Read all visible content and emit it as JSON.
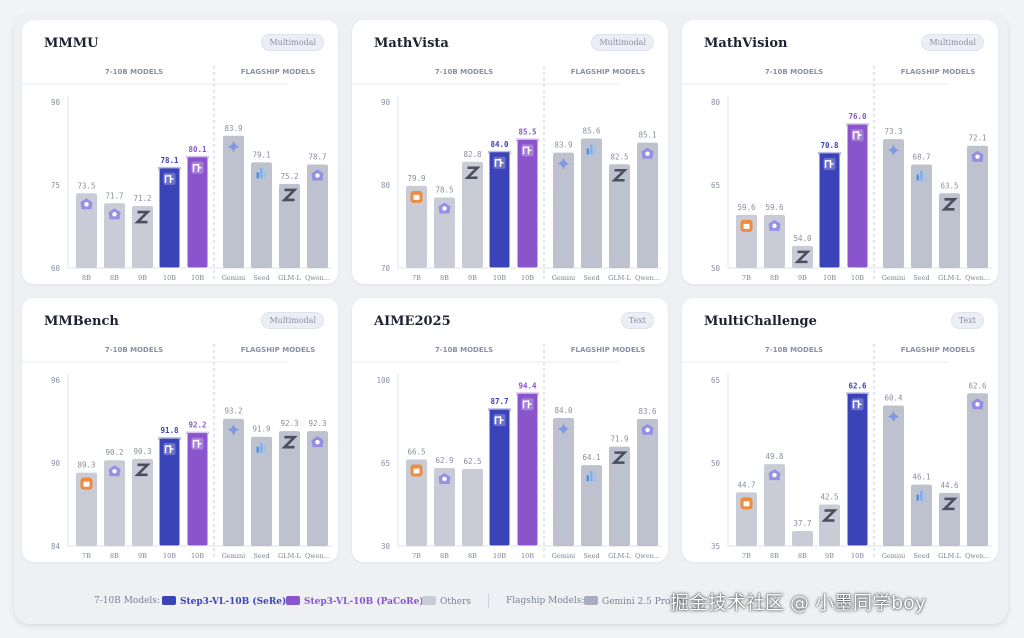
{
  "colors": {
    "serc": "#3b43b8",
    "pacore": "#8a55cc",
    "others": "#c9ccd6",
    "flag": "#a8acbd"
  },
  "chart_data": [
    {
      "type": "bar",
      "title": "MMMU",
      "badge": "Multimodal",
      "group_labels": [
        "7-10B MODELS",
        "FLAGSHIP MODELS"
      ],
      "ylim": [
        60,
        90
      ],
      "yticks": [
        "90",
        "75",
        "60"
      ],
      "categories": [
        "8B",
        "8B",
        "9B",
        "10B",
        "10B",
        "Gemini",
        "Seed",
        "GLM-L",
        "Qwen..."
      ],
      "values": [
        73.5,
        71.7,
        71.2,
        78.1,
        80.1,
        83.9,
        79.1,
        75.2,
        78.7
      ],
      "labels": [
        "73.5",
        "71.7",
        "71.2",
        "78.1",
        "80.1",
        "83.9",
        "79.1",
        "75.2",
        "78.7"
      ],
      "kinds": [
        "other",
        "other",
        "other",
        "serc",
        "pacore",
        "flag",
        "flag",
        "flag",
        "flag"
      ],
      "logos": [
        "qwen",
        "qwen",
        "zhipu",
        "step",
        "step",
        "gemini",
        "seed",
        "zhipu",
        "qwen"
      ]
    },
    {
      "type": "bar",
      "title": "MathVista",
      "badge": "Multimodal",
      "group_labels": [
        "7-10B MODELS",
        "FLAGSHIP MODELS"
      ],
      "ylim": [
        70,
        90
      ],
      "yticks": [
        "90",
        "80",
        "70"
      ],
      "categories": [
        "7B",
        "8B",
        "9B",
        "10B",
        "10B",
        "Gemini",
        "Seed",
        "GLM-L",
        "Qwen..."
      ],
      "values": [
        79.9,
        78.5,
        82.8,
        84.0,
        85.5,
        83.9,
        85.6,
        82.5,
        85.1
      ],
      "labels": [
        "79.9",
        "78.5",
        "82.8",
        "84.0",
        "85.5",
        "83.9",
        "85.6",
        "82.5",
        "85.1"
      ],
      "kinds": [
        "other",
        "other",
        "other",
        "serc",
        "pacore",
        "flag",
        "flag",
        "flag",
        "flag"
      ],
      "logos": [
        "mi",
        "qwen",
        "zhipu",
        "step",
        "step",
        "gemini",
        "seed",
        "zhipu",
        "qwen"
      ]
    },
    {
      "type": "bar",
      "title": "MathVision",
      "badge": "Multimodal",
      "group_labels": [
        "7-10B MODELS",
        "FLAGSHIP MODELS"
      ],
      "ylim": [
        50,
        80
      ],
      "yticks": [
        "80",
        "65",
        "50"
      ],
      "categories": [
        "7B",
        "8B",
        "9B",
        "10B",
        "10B",
        "Gemini",
        "Seed",
        "GLM-L",
        "Qwen..."
      ],
      "values": [
        59.6,
        59.6,
        54.0,
        70.8,
        76.0,
        73.3,
        68.7,
        63.5,
        72.1
      ],
      "labels": [
        "59.6",
        "59.6",
        "54.0",
        "70.8",
        "76.0",
        "73.3",
        "68.7",
        "63.5",
        "72.1"
      ],
      "kinds": [
        "other",
        "other",
        "other",
        "serc",
        "pacore",
        "flag",
        "flag",
        "flag",
        "flag"
      ],
      "logos": [
        "mi",
        "qwen",
        "zhipu",
        "step",
        "step",
        "gemini",
        "seed",
        "zhipu",
        "qwen"
      ]
    },
    {
      "type": "bar",
      "title": "MMBench",
      "badge": "Multimodal",
      "group_labels": [
        "7-10B MODELS",
        "FLAGSHIP MODELS"
      ],
      "ylim": [
        84,
        96
      ],
      "yticks": [
        "96",
        "90",
        "84"
      ],
      "categories": [
        "7B",
        "8B",
        "9B",
        "10B",
        "10B",
        "Gemini",
        "Seed",
        "GLM-L",
        "Qwen..."
      ],
      "values": [
        89.3,
        90.2,
        90.3,
        91.8,
        92.2,
        93.2,
        91.9,
        92.3,
        92.3
      ],
      "labels": [
        "89.3",
        "90.2",
        "90.3",
        "91.8",
        "92.2",
        "93.2",
        "91.9",
        "92.3",
        "92.3"
      ],
      "kinds": [
        "other",
        "other",
        "other",
        "serc",
        "pacore",
        "flag",
        "flag",
        "flag",
        "flag"
      ],
      "logos": [
        "mi",
        "qwen",
        "zhipu",
        "step",
        "step",
        "gemini",
        "seed",
        "zhipu",
        "qwen"
      ]
    },
    {
      "type": "bar",
      "title": "AIME2025",
      "badge": "Text",
      "group_labels": [
        "7-10B MODELS",
        "FLAGSHIP MODELS"
      ],
      "ylim": [
        30,
        100
      ],
      "yticks": [
        "100",
        "65",
        "30"
      ],
      "categories": [
        "7B",
        "8B",
        "8B",
        "10B",
        "10B",
        "Gemini",
        "Seed",
        "GLM-L",
        "Qwen..."
      ],
      "values": [
        66.5,
        62.9,
        62.5,
        87.7,
        94.4,
        84.0,
        64.1,
        71.9,
        83.6
      ],
      "labels": [
        "66.5",
        "62.9",
        "62.5",
        "87.7",
        "94.4",
        "84.0",
        "64.1",
        "71.9",
        "83.6"
      ],
      "kinds": [
        "other",
        "other",
        "other",
        "serc",
        "pacore",
        "flag",
        "flag",
        "flag",
        "flag"
      ],
      "logos": [
        "mi",
        "qwen",
        "none",
        "step",
        "step",
        "gemini",
        "seed",
        "zhipu",
        "qwen"
      ]
    },
    {
      "type": "bar",
      "title": "MultiChallenge",
      "badge": "Text",
      "group_labels": [
        "7-10B MODELS",
        "FLAGSHIP MODELS"
      ],
      "ylim": [
        35,
        65
      ],
      "yticks": [
        "65",
        "50",
        "35"
      ],
      "categories": [
        "7B",
        "8B",
        "8B",
        "9B",
        "10B",
        "Gemini",
        "Seed",
        "GLM-L",
        "Qwen..."
      ],
      "values": [
        44.7,
        49.8,
        37.7,
        42.5,
        62.6,
        60.4,
        46.1,
        44.6,
        62.6
      ],
      "labels": [
        "44.7",
        "49.8",
        "37.7",
        "42.5",
        "62.6",
        "60.4",
        "46.1",
        "44.6",
        "62.6"
      ],
      "kinds": [
        "other",
        "other",
        "other",
        "other",
        "serc",
        "flag",
        "flag",
        "flag",
        "flag"
      ],
      "logos": [
        "mi",
        "qwen",
        "none",
        "zhipu",
        "step",
        "gemini",
        "seed",
        "zhipu",
        "qwen"
      ]
    }
  ],
  "legend": {
    "group1_label": "7-10B Models:",
    "serc": "Step3-VL-10B (SeRe)",
    "pacore": "Step3-VL-10B (PaCoRe)",
    "others": "Others",
    "group2_label": "Flagship Models:",
    "gemini": "Gemini 2.5 Pro / S"
  },
  "watermark": "掘金技术社区 @ 小墨同学boy"
}
